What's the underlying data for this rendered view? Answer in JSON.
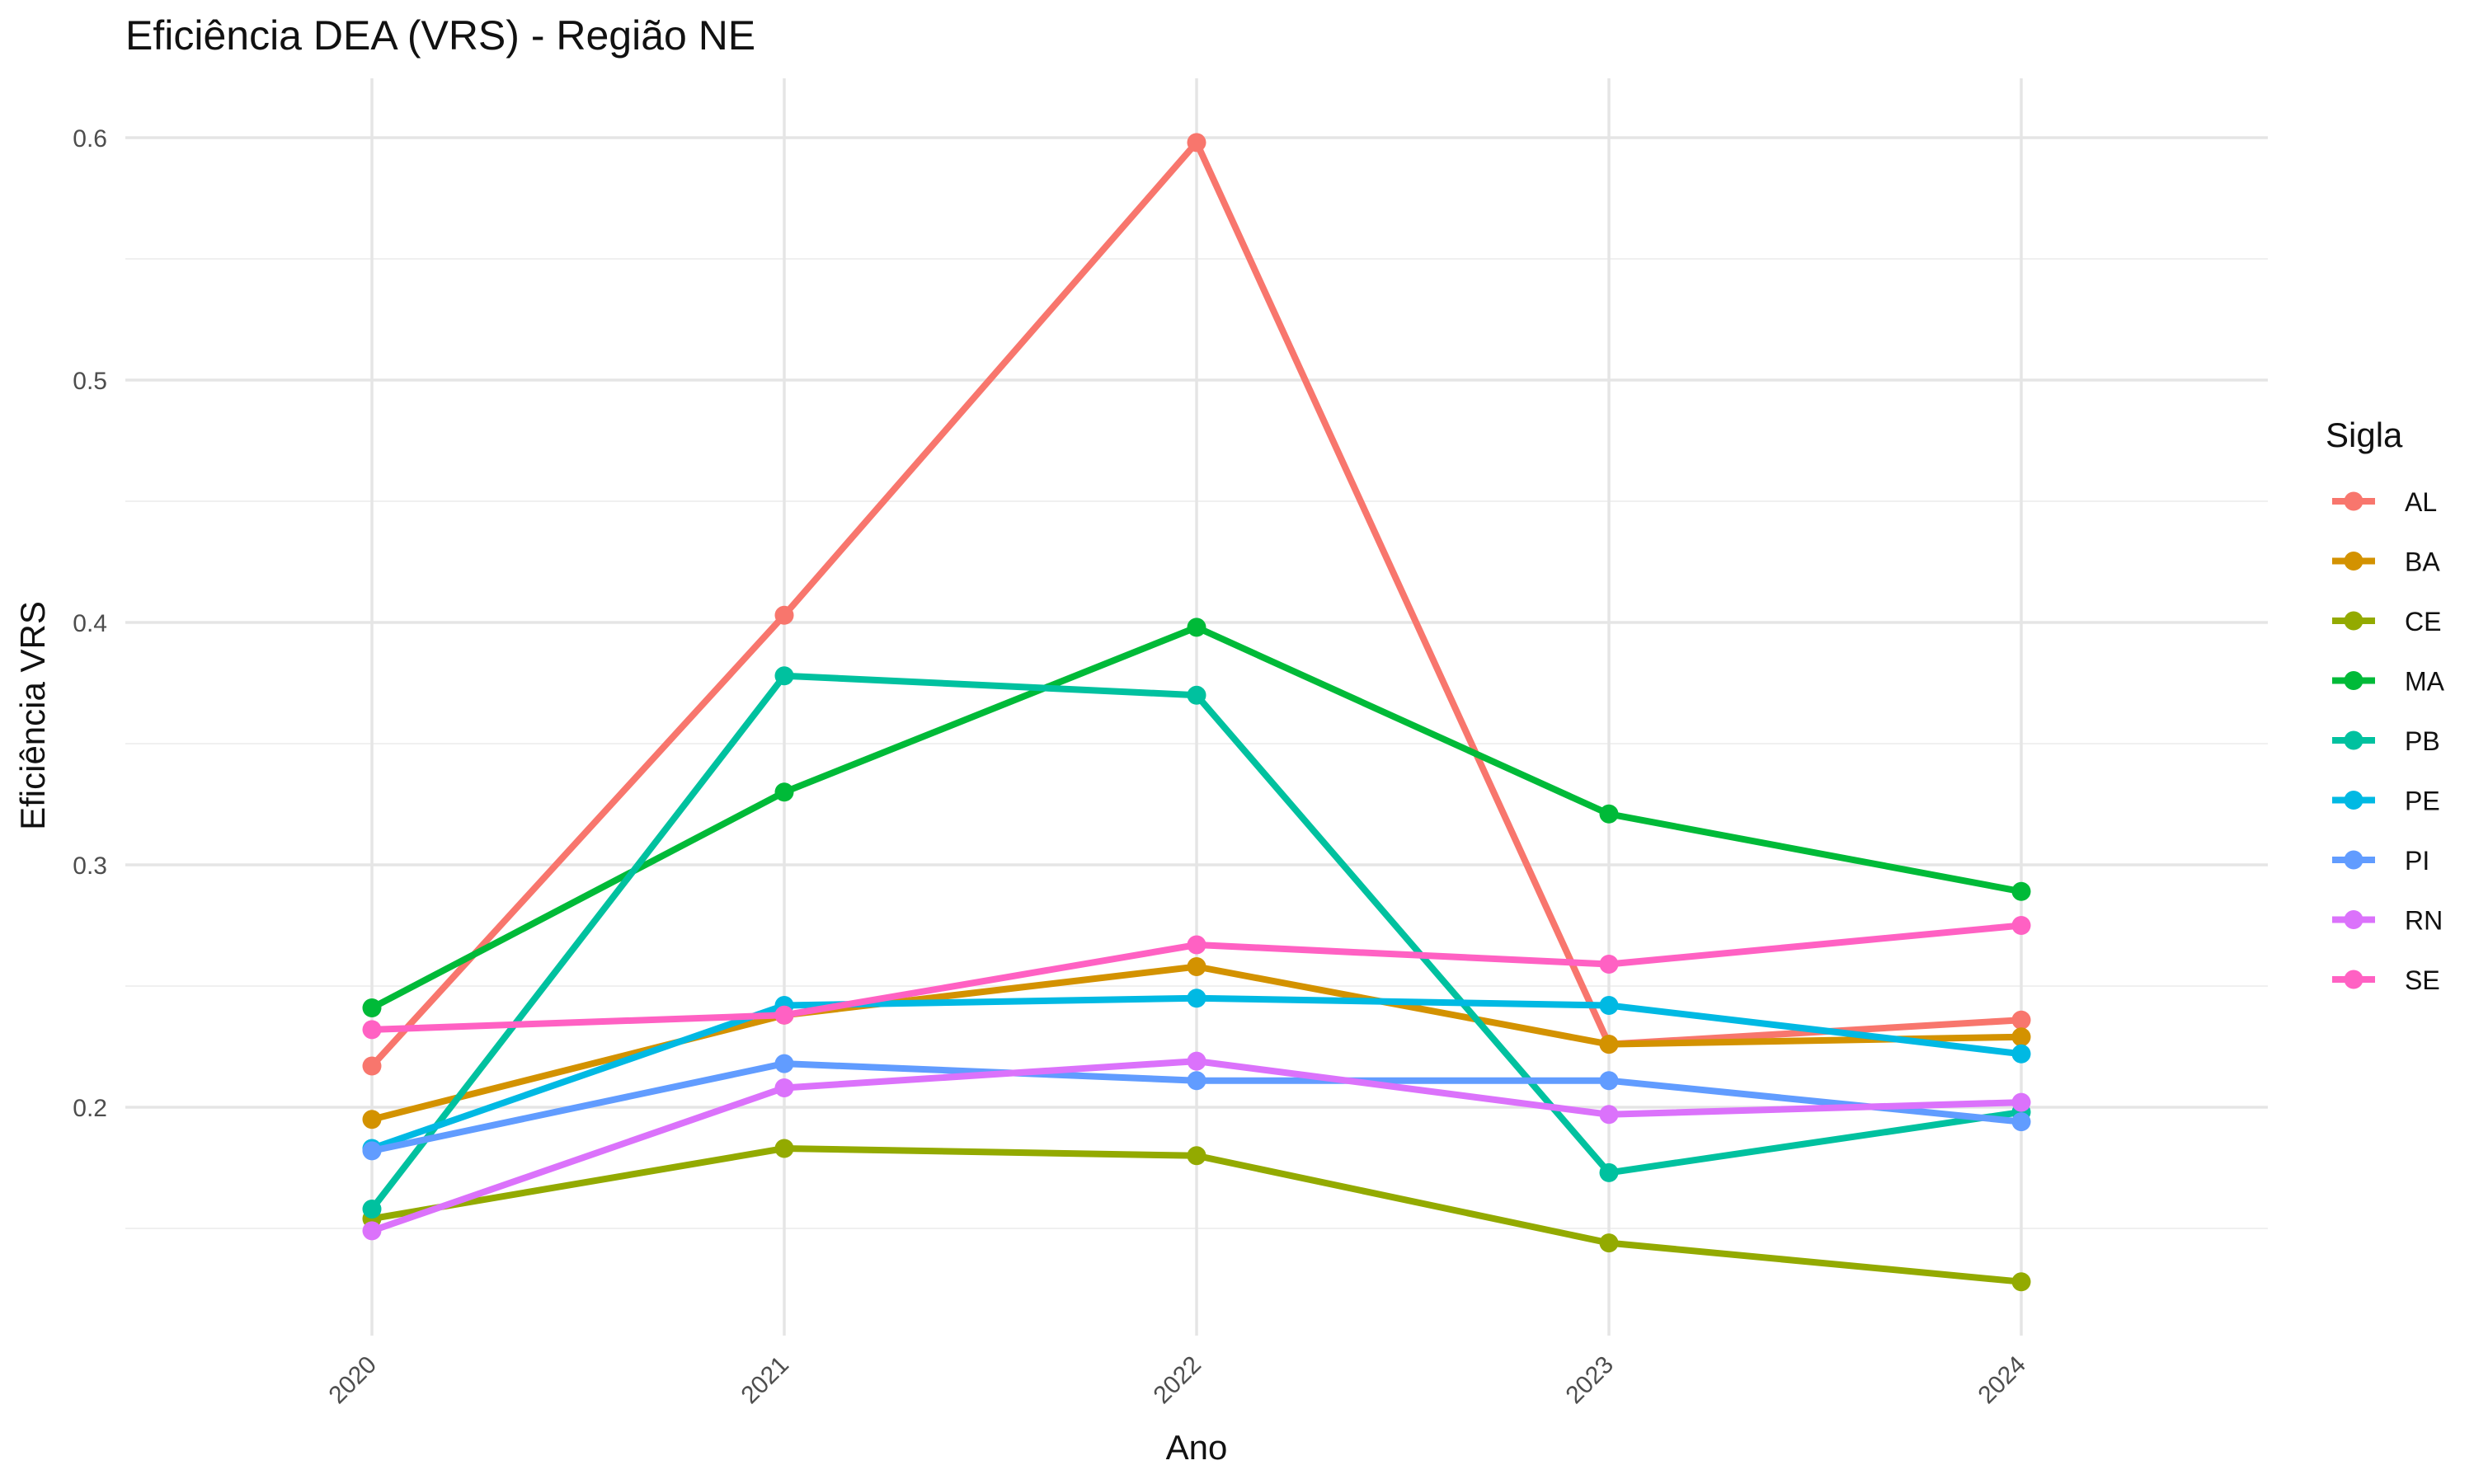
{
  "chart_data": {
    "type": "line",
    "title": "Eficiência DEA (VRS) - Região NE",
    "xlabel": "Ano",
    "ylabel": "Eficiência VRS",
    "x": [
      2020,
      2021,
      2022,
      2023,
      2024
    ],
    "x_tick_labels": [
      "2020",
      "2021",
      "2022",
      "2023",
      "2024"
    ],
    "y_ticks": [
      0.2,
      0.3,
      0.4,
      0.5,
      0.6
    ],
    "y_tick_labels": [
      "0.2",
      "0.3",
      "0.4",
      "0.5",
      "0.6"
    ],
    "ylim": [
      0.1,
      0.62
    ],
    "grid": true,
    "legend": {
      "title": "Sigla",
      "position": "right"
    },
    "series": [
      {
        "name": "AL",
        "color": "#F8766D",
        "values": [
          0.217,
          0.403,
          0.598,
          0.226,
          0.236
        ]
      },
      {
        "name": "BA",
        "color": "#D39200",
        "values": [
          0.195,
          0.238,
          0.258,
          0.226,
          0.229
        ]
      },
      {
        "name": "CE",
        "color": "#93AA00",
        "values": [
          0.154,
          0.183,
          0.18,
          0.144,
          0.128
        ]
      },
      {
        "name": "MA",
        "color": "#00BA38",
        "values": [
          0.241,
          0.33,
          0.398,
          0.321,
          0.289
        ]
      },
      {
        "name": "PB",
        "color": "#00C19F",
        "values": [
          0.158,
          0.378,
          0.37,
          0.173,
          0.198
        ]
      },
      {
        "name": "PE",
        "color": "#00B9E3",
        "values": [
          0.183,
          0.242,
          0.245,
          0.242,
          0.222
        ]
      },
      {
        "name": "PI",
        "color": "#619CFF",
        "values": [
          0.182,
          0.218,
          0.211,
          0.211,
          0.194
        ]
      },
      {
        "name": "RN",
        "color": "#DB72FB",
        "values": [
          0.149,
          0.208,
          0.219,
          0.197,
          0.202
        ]
      },
      {
        "name": "SE",
        "color": "#FF61C3",
        "values": [
          0.232,
          0.238,
          0.267,
          0.259,
          0.275
        ]
      }
    ]
  }
}
